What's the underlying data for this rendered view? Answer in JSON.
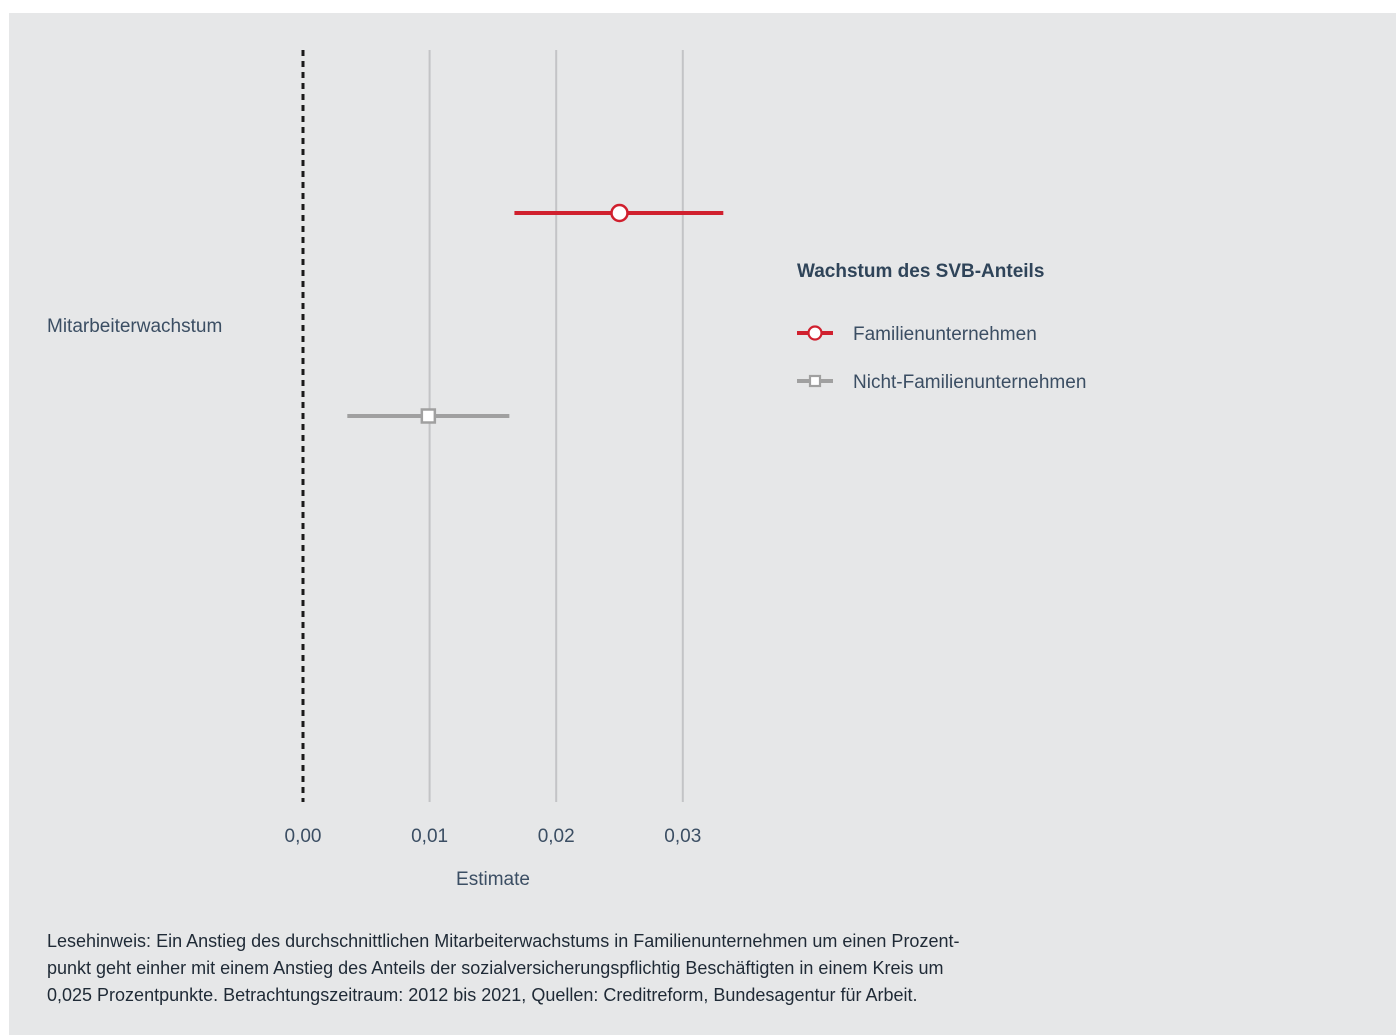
{
  "chart_data": {
    "type": "forest",
    "xlabel": "Estimate",
    "xlim": [
      -0.0,
      0.035
    ],
    "xticks": [
      0.0,
      0.01,
      0.02,
      0.03
    ],
    "xtick_labels": [
      "0,00",
      "0,01",
      "0,02",
      "0,03"
    ],
    "reference_line": 0.0,
    "categories": [
      "Mitarbeiterwachstum"
    ],
    "legend_title": "Wachstum des SVB-Anteils",
    "legend_position": "right",
    "series": [
      {
        "name": "Familienunternehmen",
        "estimate": 0.025,
        "ci_low": 0.0167,
        "ci_high": 0.0332,
        "color": "#d0202e",
        "marker": "circle"
      },
      {
        "name": "Nicht-Familienunternehmen",
        "estimate": 0.0099,
        "ci_low": 0.0035,
        "ci_high": 0.0163,
        "color": "#a0a0a0",
        "marker": "square"
      }
    ]
  },
  "note": {
    "lines": [
      "Lesehinweis: Ein Anstieg des durchschnittlichen Mitarbeiterwachstums in Familienunternehmen um einen Prozent-",
      "punkt geht einher mit einem Anstieg des Anteils der sozialversicherungspflichtig Beschäftigten in einem Kreis um",
      "0,025 Prozentpunkte. Betrachtungszeitraum: 2012 bis 2021, Quellen: Creditreform, Bundesagentur für Arbeit."
    ]
  }
}
